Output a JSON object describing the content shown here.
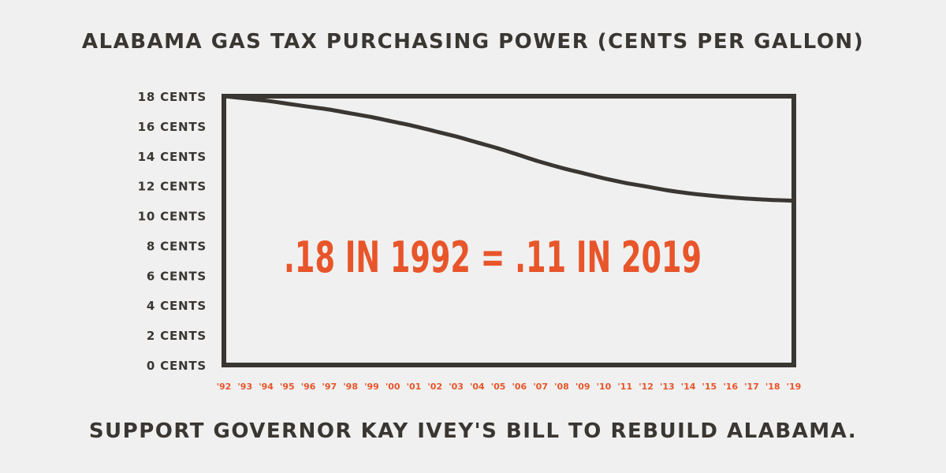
{
  "header": {
    "title": "ALABAMA GAS TAX PURCHASING POWER (CENTS PER GALLON)"
  },
  "footer": {
    "text": "SUPPORT GOVERNOR KAY IVEY'S BILL TO REBUILD ALABAMA."
  },
  "colors": {
    "text": "#3a3632",
    "accent": "#e8552a",
    "background": "#f0f0f0"
  },
  "chart_data": {
    "type": "line",
    "title": "ALABAMA GAS TAX PURCHASING POWER (CENTS PER GALLON)",
    "xlabel": "",
    "ylabel": "",
    "ylim": [
      0,
      18
    ],
    "grid": false,
    "y_ticks": [
      {
        "value": 0,
        "label": "0 CENTS"
      },
      {
        "value": 2,
        "label": "2 CENTS"
      },
      {
        "value": 4,
        "label": "4 CENTS"
      },
      {
        "value": 6,
        "label": "6 CENTS"
      },
      {
        "value": 8,
        "label": "8 CENTS"
      },
      {
        "value": 10,
        "label": "10 CENTS"
      },
      {
        "value": 12,
        "label": "12 CENTS"
      },
      {
        "value": 14,
        "label": "14 CENTS"
      },
      {
        "value": 16,
        "label": "16 CENTS"
      },
      {
        "value": 18,
        "label": "18 CENTS"
      }
    ],
    "x": [
      1992,
      1993,
      1994,
      1995,
      1996,
      1997,
      1998,
      1999,
      2000,
      2001,
      2002,
      2003,
      2004,
      2005,
      2006,
      2007,
      2008,
      2009,
      2010,
      2011,
      2012,
      2013,
      2014,
      2015,
      2016,
      2017,
      2018,
      2019
    ],
    "x_tick_labels": [
      "'92",
      "'93",
      "'94",
      "'95",
      "'96",
      "'97",
      "'98",
      "'99",
      "'00",
      "'01",
      "'02",
      "'03",
      "'04",
      "'05",
      "'06",
      "'07",
      "'08",
      "'09",
      "'10",
      "'11",
      "'12",
      "'13",
      "'14",
      "'15",
      "'16",
      "'17",
      "'18",
      "'19"
    ],
    "series": [
      {
        "values": [
          18.0,
          17.85,
          17.7,
          17.5,
          17.3,
          17.1,
          16.85,
          16.6,
          16.3,
          16.0,
          15.65,
          15.3,
          14.9,
          14.5,
          14.05,
          13.6,
          13.2,
          12.85,
          12.5,
          12.2,
          11.95,
          11.7,
          11.5,
          11.35,
          11.22,
          11.12,
          11.05,
          11.0
        ]
      }
    ],
    "annotations": [
      {
        "text": ".18 IN 1992 = .11 IN 2019"
      }
    ]
  }
}
